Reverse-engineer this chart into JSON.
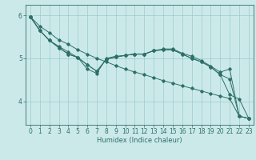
{
  "xlabel": "Humidex (Indice chaleur)",
  "ylabel": "",
  "bg_color": "#cce9e9",
  "grid_color": "#99cccc",
  "line_color": "#2d7068",
  "xlim": [
    -0.5,
    23.5
  ],
  "ylim": [
    3.45,
    6.25
  ],
  "yticks": [
    4,
    5,
    6
  ],
  "xticks": [
    0,
    1,
    2,
    3,
    4,
    5,
    6,
    7,
    8,
    9,
    10,
    11,
    12,
    13,
    14,
    15,
    16,
    17,
    18,
    19,
    20,
    21,
    22,
    23
  ],
  "series": [
    [
      5.97,
      5.75,
      5.6,
      5.43,
      5.33,
      5.2,
      5.1,
      5.0,
      4.92,
      4.83,
      4.75,
      4.68,
      4.62,
      4.55,
      4.48,
      4.42,
      4.36,
      4.3,
      4.24,
      4.18,
      4.12,
      4.06,
      3.65,
      3.6
    ],
    [
      5.97,
      5.65,
      5.42,
      5.28,
      5.15,
      5.02,
      4.75,
      4.65,
      5.0,
      5.05,
      5.07,
      5.1,
      5.1,
      5.18,
      5.22,
      5.22,
      5.12,
      5.05,
      4.95,
      4.82,
      4.68,
      4.75,
      3.65,
      3.6
    ],
    [
      5.97,
      5.65,
      5.42,
      5.25,
      5.1,
      5.02,
      4.85,
      4.7,
      4.98,
      5.03,
      5.07,
      5.1,
      5.1,
      5.18,
      5.2,
      5.2,
      5.1,
      5.0,
      4.92,
      4.8,
      4.62,
      4.52,
      3.65,
      3.6
    ],
    [
      5.97,
      5.65,
      5.42,
      5.25,
      5.1,
      5.02,
      4.85,
      4.7,
      4.98,
      5.03,
      5.07,
      5.1,
      5.1,
      5.18,
      5.2,
      5.2,
      5.1,
      5.0,
      4.92,
      4.8,
      4.62,
      4.15,
      4.05,
      3.6
    ]
  ]
}
